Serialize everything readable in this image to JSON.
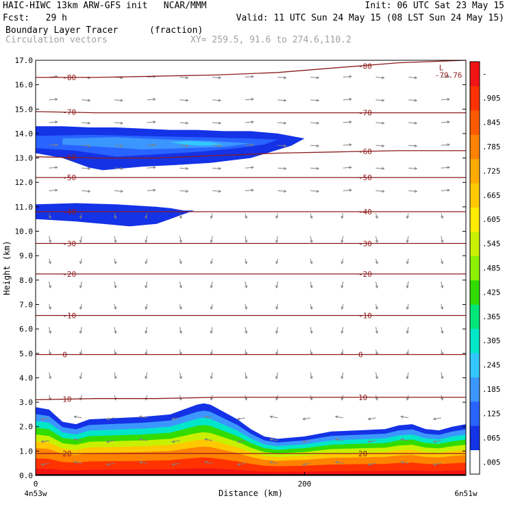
{
  "header": {
    "line1_left": "HAIC-HIWC 13km ARW-GFS init   NCAR/MMM",
    "line1_right": "Init: 06 UTC Sat 23 May 15",
    "line2_left": "Fcst:   29 h",
    "line2_right": "Valid: 11 UTC Sun 24 May 15 (08 LST Sun 24 May 15)",
    "field_name": "Boundary Layer Tracer",
    "field_units": "(fraction)",
    "vector_label": "Circulation vectors",
    "xy_label": "XY= 259.5, 91.6 to 274.6,110.2"
  },
  "colors": {
    "contour": "#8b1a1a",
    "vector": "#808080",
    "ground": "#000000"
  },
  "chart_data": {
    "type": "heatmap",
    "title": "Boundary Layer Tracer",
    "units": "(fraction)",
    "xlabel": "Distance (km)",
    "ylabel": "Height (km)",
    "xlim": [
      0,
      320
    ],
    "ylim": [
      0,
      17
    ],
    "x_ticks": [
      0,
      200
    ],
    "x_tick_labels": [
      "0",
      "200"
    ],
    "x_end_labels": [
      "4n53w",
      "6n51w"
    ],
    "y_ticks": [
      0,
      1,
      2,
      3,
      4,
      5,
      6,
      7,
      8,
      9,
      10,
      11,
      12,
      13,
      14,
      15,
      16,
      17
    ],
    "y_tick_labels": [
      "0.0",
      "1.0",
      "2.0",
      "3.0",
      "4.0",
      "5.0",
      "6.0",
      "7.0",
      "8.0",
      "9.0",
      "10.0",
      "11.0",
      "12.0",
      "13.0",
      "14.0",
      "15.0",
      "16.0",
      "17.0"
    ],
    "colorbar": {
      "labels": [
        ".005",
        ".065",
        ".125",
        ".185",
        ".245",
        ".305",
        ".365",
        ".425",
        ".485",
        ".545",
        ".605",
        ".665",
        ".725",
        ".785",
        ".845",
        ".905",
        "-"
      ],
      "colors": [
        "#ffffff",
        "#1432e6",
        "#2864ff",
        "#3c96ff",
        "#32c8ff",
        "#00e6c8",
        "#00e678",
        "#32dc00",
        "#8cf000",
        "#c8f000",
        "#ffeb00",
        "#ffc800",
        "#ffaa00",
        "#ff8200",
        "#ff5a00",
        "#ff3200",
        "#f01414"
      ]
    },
    "temperature_contours": [
      {
        "value": -80,
        "label": "-80",
        "heights": [
          16.3,
          16.3,
          16.35,
          16.4,
          16.5,
          16.7,
          16.9,
          17.0
        ]
      },
      {
        "value": -70,
        "label": "-70",
        "heights": [
          14.9,
          14.85,
          14.85,
          14.85,
          14.85,
          14.85,
          14.85,
          14.85
        ]
      },
      {
        "value": -60,
        "label": "-60",
        "heights": [
          13.05,
          13.0,
          13.0,
          13.1,
          13.2,
          13.25,
          13.3,
          13.3
        ]
      },
      {
        "value": -50,
        "label": "-50",
        "heights": [
          12.2,
          12.2,
          12.2,
          12.2,
          12.2,
          12.2,
          12.2,
          12.2
        ]
      },
      {
        "value": -40,
        "label": "-40",
        "heights": [
          10.8,
          10.8,
          10.8,
          10.8,
          10.8,
          10.8,
          10.8,
          10.8
        ]
      },
      {
        "value": -30,
        "label": "-30",
        "heights": [
          9.5,
          9.5,
          9.5,
          9.5,
          9.5,
          9.5,
          9.5,
          9.5
        ]
      },
      {
        "value": -20,
        "label": "-20",
        "heights": [
          8.25,
          8.25,
          8.25,
          8.25,
          8.25,
          8.25,
          8.25,
          8.25
        ]
      },
      {
        "value": -10,
        "label": "-10",
        "heights": [
          6.55,
          6.55,
          6.55,
          6.55,
          6.55,
          6.55,
          6.55,
          6.55
        ]
      },
      {
        "value": 0,
        "label": "0",
        "heights": [
          4.95,
          4.95,
          4.95,
          4.95,
          4.95,
          4.95,
          4.95,
          4.95
        ]
      },
      {
        "value": 10,
        "label": "10",
        "heights": [
          3.1,
          3.15,
          3.15,
          3.2,
          3.2,
          3.2,
          3.2,
          3.2
        ]
      },
      {
        "value": 20,
        "label": "20",
        "heights": [
          0.9,
          0.9,
          0.9,
          0.9,
          0.9,
          0.9,
          0.9,
          0.9
        ]
      }
    ],
    "contour_x": [
      0,
      45,
      90,
      135,
      180,
      225,
      270,
      320
    ],
    "low_marker": {
      "symbol": "L",
      "value": "-79.76",
      "x": 300,
      "y": 16.6
    },
    "tracer_boundary_layer": {
      "x": [
        0,
        10,
        20,
        30,
        40,
        60,
        80,
        100,
        110,
        120,
        125,
        130,
        140,
        150,
        160,
        170,
        180,
        190,
        200,
        220,
        240,
        260,
        270,
        280,
        290,
        300,
        310,
        320
      ],
      "top": [
        2.8,
        2.7,
        2.2,
        2.1,
        2.3,
        2.35,
        2.4,
        2.5,
        2.7,
        2.9,
        2.95,
        2.9,
        2.6,
        2.3,
        1.9,
        1.6,
        1.5,
        1.55,
        1.6,
        1.8,
        1.85,
        1.9,
        2.05,
        2.1,
        1.9,
        1.85,
        2.0,
        2.1
      ],
      "bands": [
        {
          "depth": 0.0,
          "value": 0.065
        },
        {
          "depth": 0.1,
          "value": 0.185
        },
        {
          "depth": 0.2,
          "value": 0.305
        },
        {
          "depth": 0.3,
          "value": 0.425
        },
        {
          "depth": 0.4,
          "value": 0.545
        },
        {
          "depth": 0.5,
          "value": 0.665
        },
        {
          "depth": 0.6,
          "value": 0.785
        },
        {
          "depth": 0.75,
          "value": 0.905
        },
        {
          "depth": 0.9,
          "value": 0.95
        }
      ]
    },
    "tracer_upper_layers": [
      {
        "x": [
          0,
          20,
          40,
          60,
          80,
          100,
          120,
          140,
          160,
          180,
          190,
          200,
          190,
          160,
          130,
          100,
          80,
          60,
          50,
          40,
          20,
          0
        ],
        "y": [
          14.3,
          14.3,
          14.25,
          14.25,
          14.2,
          14.15,
          14.15,
          14.1,
          14.1,
          14.0,
          13.9,
          13.8,
          13.5,
          13.0,
          12.8,
          12.7,
          12.65,
          12.55,
          12.5,
          12.6,
          13.0,
          13.2
        ],
        "value": 0.065
      },
      {
        "x": [
          0,
          40,
          80,
          120,
          160,
          180,
          170,
          150,
          120,
          90,
          60,
          30,
          0
        ],
        "y": [
          13.9,
          13.95,
          13.9,
          13.85,
          13.8,
          13.75,
          13.55,
          13.4,
          13.25,
          13.15,
          13.05,
          13.3,
          13.4
        ],
        "value": 0.125
      },
      {
        "x": [
          20,
          60,
          100,
          130,
          160,
          140,
          110,
          80,
          50,
          20
        ],
        "y": [
          13.8,
          13.85,
          13.75,
          13.7,
          13.6,
          13.45,
          13.4,
          13.35,
          13.45,
          13.55
        ],
        "value": 0.185
      },
      {
        "x": [
          100,
          115,
          130,
          140,
          125,
          110
        ],
        "y": [
          13.65,
          13.7,
          13.65,
          13.55,
          13.5,
          13.55
        ],
        "value": 0.245
      },
      {
        "x": [
          0,
          30,
          60,
          90,
          100,
          110,
          118,
          110,
          100,
          90,
          70,
          50,
          30,
          0
        ],
        "y": [
          11.1,
          11.15,
          11.1,
          11.0,
          10.95,
          10.85,
          10.85,
          10.7,
          10.5,
          10.3,
          10.2,
          10.3,
          10.4,
          10.5
        ],
        "value": 0.065
      }
    ]
  }
}
